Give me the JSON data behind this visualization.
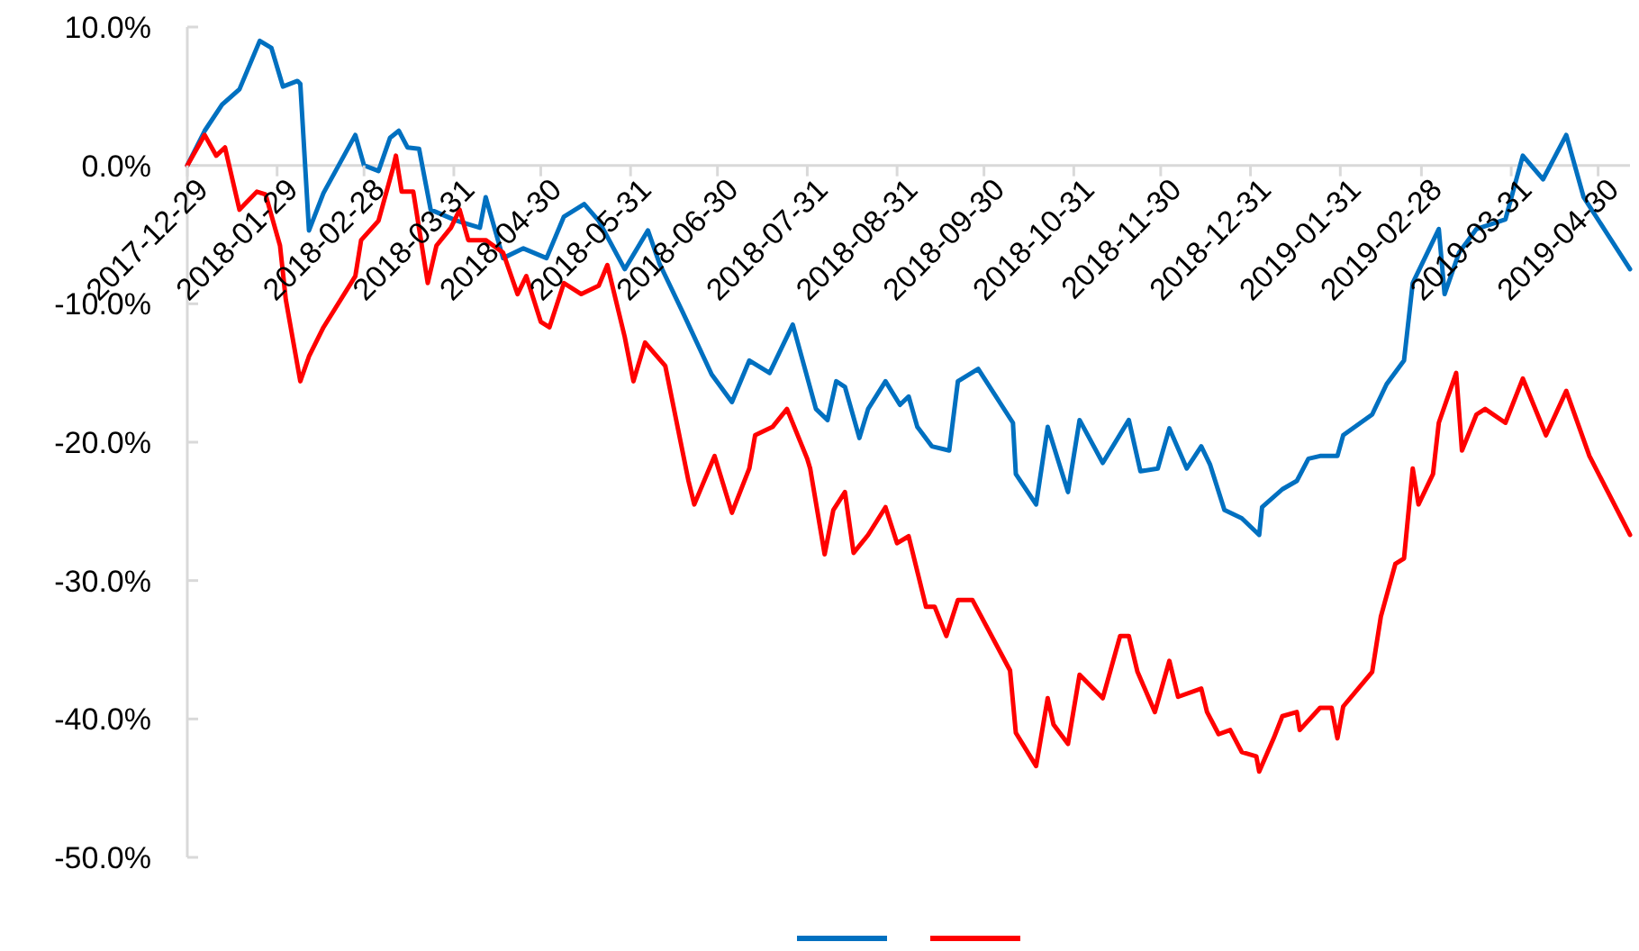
{
  "chart_data": {
    "type": "line",
    "xlim": [
      "2017-12-29",
      "2019-05-11"
    ],
    "xticks": [
      "2017-12-29",
      "2018-01-29",
      "2018-02-28",
      "2018-03-31",
      "2018-04-30",
      "2018-05-31",
      "2018-06-30",
      "2018-07-31",
      "2018-08-31",
      "2018-09-30",
      "2018-10-31",
      "2018-11-30",
      "2018-12-31",
      "2019-01-31",
      "2019-02-28",
      "2019-03-31",
      "2019-04-30"
    ],
    "ylim": [
      -50,
      10
    ],
    "yticks": [
      {
        "value": 10,
        "label": "10.0%"
      },
      {
        "value": 0,
        "label": "0.0%"
      },
      {
        "value": -10,
        "label": "-10.0%"
      },
      {
        "value": -20,
        "label": "-20.0%"
      },
      {
        "value": -30,
        "label": "-30.0%"
      },
      {
        "value": -40,
        "label": "-40.0%"
      },
      {
        "value": -50,
        "label": "-50.0%"
      }
    ],
    "grid": false,
    "marker": "none",
    "line_style": "solid",
    "series": [
      {
        "color": "#0070c0",
        "x": [
          "2017-12-29",
          "2018-01-04",
          "2018-01-10",
          "2018-01-16",
          "2018-01-23",
          "2018-01-27",
          "2018-01-31",
          "2018-02-05",
          "2018-02-06",
          "2018-02-09",
          "2018-02-14",
          "2018-02-25",
          "2018-02-28",
          "2018-03-05",
          "2018-03-09",
          "2018-03-12",
          "2018-03-15",
          "2018-03-19",
          "2018-03-23",
          "2018-04-01",
          "2018-04-09",
          "2018-04-11",
          "2018-04-17",
          "2018-04-24",
          "2018-05-02",
          "2018-05-08",
          "2018-05-15",
          "2018-05-20",
          "2018-05-29",
          "2018-06-06",
          "2018-06-10",
          "2018-06-18",
          "2018-06-28",
          "2018-07-05",
          "2018-07-11",
          "2018-07-18",
          "2018-07-26",
          "2018-08-03",
          "2018-08-07",
          "2018-08-10",
          "2018-08-13",
          "2018-08-18",
          "2018-08-21",
          "2018-08-27",
          "2018-09-01",
          "2018-09-04",
          "2018-09-07",
          "2018-09-12",
          "2018-09-18",
          "2018-09-21",
          "2018-09-28",
          "2018-10-10",
          "2018-10-11",
          "2018-10-18",
          "2018-10-22",
          "2018-10-29",
          "2018-11-02",
          "2018-11-10",
          "2018-11-19",
          "2018-11-23",
          "2018-11-29",
          "2018-12-03",
          "2018-12-09",
          "2018-12-14",
          "2018-12-17",
          "2018-12-22",
          "2018-12-28",
          "2019-01-03",
          "2019-01-04",
          "2019-01-11",
          "2019-01-16",
          "2019-01-20",
          "2019-01-24",
          "2019-01-30",
          "2019-02-01",
          "2019-02-11",
          "2019-02-16",
          "2019-02-22",
          "2019-02-25",
          "2019-02-28",
          "2019-03-06",
          "2019-03-08",
          "2019-03-13",
          "2019-03-19",
          "2019-03-29",
          "2019-04-04",
          "2019-04-11",
          "2019-04-19",
          "2019-04-25",
          "2019-05-11"
        ],
        "values": [
          0,
          2.5,
          4.4,
          5.5,
          9.0,
          8.5,
          5.7,
          6.1,
          5.9,
          -4.7,
          -2.0,
          2.2,
          0,
          -0.4,
          2.0,
          2.5,
          1.3,
          1.2,
          -3.2,
          -4.0,
          -4.5,
          -2.3,
          -6.7,
          -6.0,
          -6.7,
          -3.7,
          -2.8,
          -4.0,
          -7.5,
          -4.7,
          -7.1,
          -10.6,
          -15.1,
          -17.1,
          -14.1,
          -15.0,
          -11.5,
          -17.6,
          -18.4,
          -15.6,
          -16.0,
          -19.7,
          -17.6,
          -15.6,
          -17.3,
          -16.7,
          -18.9,
          -20.3,
          -20.6,
          -15.6,
          -14.7,
          -18.6,
          -22.3,
          -24.5,
          -18.9,
          -23.6,
          -18.4,
          -21.5,
          -18.4,
          -22.1,
          -21.9,
          -19.0,
          -21.9,
          -20.3,
          -21.6,
          -24.9,
          -25.5,
          -26.7,
          -24.7,
          -23.4,
          -22.8,
          -21.2,
          -21.0,
          -21.0,
          -19.5,
          -18.0,
          -15.8,
          -14.1,
          -8.5,
          -7.2,
          -4.6,
          -9.3,
          -6.3,
          -4.6,
          -3.9,
          0.7,
          -1.0,
          2.2,
          -2.3,
          -7.5
        ]
      },
      {
        "color": "#ff0000",
        "x": [
          "2017-12-29",
          "2018-01-04",
          "2018-01-08",
          "2018-01-11",
          "2018-01-16",
          "2018-01-22",
          "2018-01-25",
          "2018-01-30",
          "2018-02-01",
          "2018-02-06",
          "2018-02-09",
          "2018-02-14",
          "2018-02-25",
          "2018-02-27",
          "2018-03-05",
          "2018-03-10",
          "2018-03-11",
          "2018-03-13",
          "2018-03-17",
          "2018-03-22",
          "2018-03-25",
          "2018-03-30",
          "2018-04-02",
          "2018-04-05",
          "2018-04-11",
          "2018-04-17",
          "2018-04-22",
          "2018-04-25",
          "2018-04-30",
          "2018-05-03",
          "2018-05-08",
          "2018-05-14",
          "2018-05-20",
          "2018-05-23",
          "2018-05-29",
          "2018-06-01",
          "2018-06-05",
          "2018-06-12",
          "2018-06-20",
          "2018-06-22",
          "2018-06-29",
          "2018-07-05",
          "2018-07-11",
          "2018-07-13",
          "2018-07-19",
          "2018-07-24",
          "2018-07-31",
          "2018-08-01",
          "2018-08-06",
          "2018-08-09",
          "2018-08-13",
          "2018-08-16",
          "2018-08-21",
          "2018-08-27",
          "2018-08-31",
          "2018-09-04",
          "2018-09-10",
          "2018-09-13",
          "2018-09-17",
          "2018-09-21",
          "2018-09-26",
          "2018-10-09",
          "2018-10-11",
          "2018-10-18",
          "2018-10-22",
          "2018-10-24",
          "2018-10-29",
          "2018-11-02",
          "2018-11-10",
          "2018-11-16",
          "2018-11-19",
          "2018-11-22",
          "2018-11-28",
          "2018-12-03",
          "2018-12-06",
          "2018-12-14",
          "2018-12-16",
          "2018-12-20",
          "2018-12-24",
          "2018-12-28",
          "2019-01-02",
          "2019-01-03",
          "2019-01-08",
          "2019-01-11",
          "2019-01-16",
          "2019-01-17",
          "2019-01-24",
          "2019-01-28",
          "2019-01-30",
          "2019-02-01",
          "2019-02-11",
          "2019-02-14",
          "2019-02-19",
          "2019-02-22",
          "2019-02-25",
          "2019-02-27",
          "2019-03-04",
          "2019-03-06",
          "2019-03-12",
          "2019-03-14",
          "2019-03-19",
          "2019-03-22",
          "2019-03-29",
          "2019-04-04",
          "2019-04-12",
          "2019-04-19",
          "2019-04-27",
          "2019-05-11"
        ],
        "values": [
          0,
          2.2,
          0.7,
          1.3,
          -3.2,
          -1.9,
          -2.1,
          -5.8,
          -9.7,
          -15.6,
          -13.8,
          -11.7,
          -8.0,
          -5.4,
          -4.0,
          -0.2,
          0.7,
          -1.9,
          -1.9,
          -8.5,
          -5.8,
          -4.5,
          -3.2,
          -5.4,
          -5.4,
          -6.3,
          -9.3,
          -8.0,
          -11.3,
          -11.7,
          -8.5,
          -9.3,
          -8.7,
          -7.2,
          -12.4,
          -15.6,
          -12.8,
          -14.5,
          -22.8,
          -24.5,
          -21.0,
          -25.1,
          -21.9,
          -19.5,
          -18.9,
          -17.6,
          -21.2,
          -21.9,
          -28.1,
          -24.9,
          -23.6,
          -28.0,
          -26.7,
          -24.7,
          -27.3,
          -26.8,
          -31.9,
          -31.9,
          -34.0,
          -31.4,
          -31.4,
          -36.5,
          -41.0,
          -43.4,
          -38.5,
          -40.4,
          -41.8,
          -36.8,
          -38.5,
          -34.0,
          -34.0,
          -36.6,
          -39.5,
          -35.8,
          -38.4,
          -37.8,
          -39.5,
          -41.1,
          -40.8,
          -42.4,
          -42.7,
          -43.8,
          -41.4,
          -39.8,
          -39.5,
          -40.8,
          -39.2,
          -39.2,
          -41.4,
          -39.1,
          -36.6,
          -32.6,
          -28.8,
          -28.4,
          -21.9,
          -24.5,
          -22.3,
          -18.6,
          -15.0,
          -20.6,
          -18.0,
          -17.6,
          -18.6,
          -15.4,
          -19.5,
          -16.3,
          -21.0,
          -26.7
        ]
      }
    ]
  }
}
